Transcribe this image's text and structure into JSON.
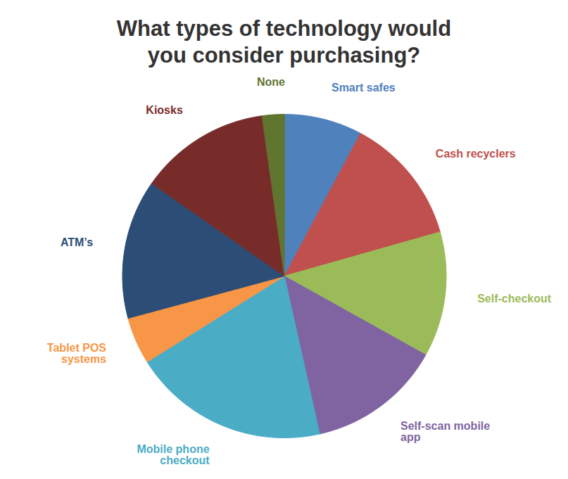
{
  "chart_data": {
    "type": "pie",
    "title": "What types of technology would you consider purchasing?",
    "categories": [
      "Smart safes",
      "Cash recyclers",
      "Self-checkout",
      "Self-scan mobile app",
      "Mobile phone checkout",
      "Tablet POS systems",
      "ATM’s",
      "Kiosks",
      "None"
    ],
    "values": [
      7.8,
      12.8,
      12.5,
      13.4,
      19.6,
      4.7,
      13.9,
      13.1,
      2.2
    ],
    "colors": [
      "#4f81bd",
      "#c0504d",
      "#9bbb59",
      "#8064a2",
      "#4bacc6",
      "#f79646",
      "#2c4d75",
      "#772c2a",
      "#5f7530"
    ]
  }
}
